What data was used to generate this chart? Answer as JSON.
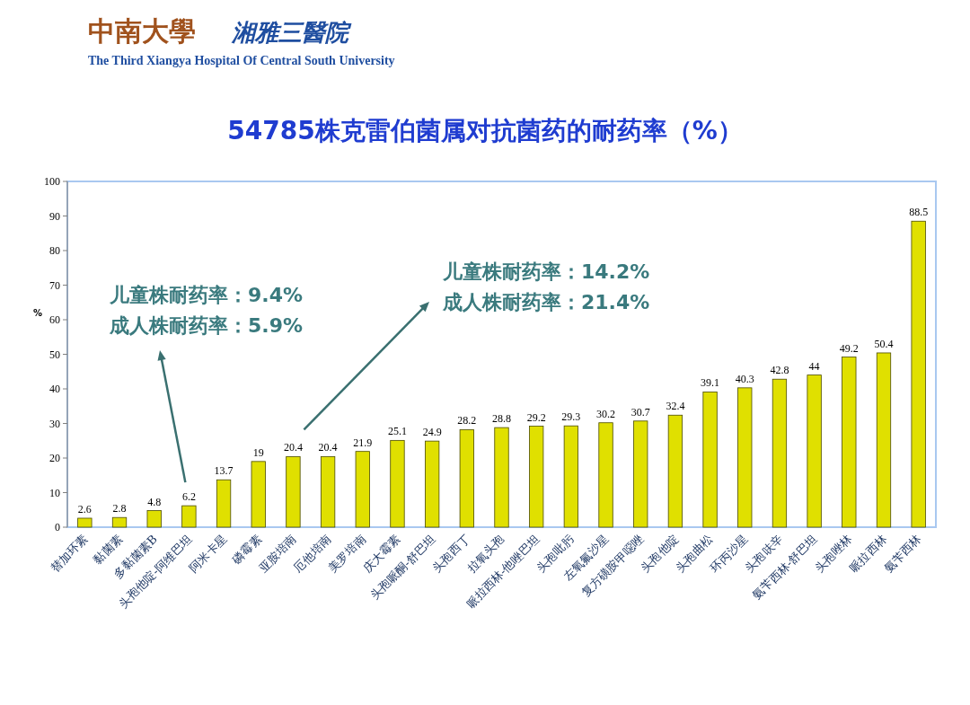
{
  "chart_data": {
    "type": "bar",
    "title": "54785株克雷伯菌属对抗菌药的耐药率（%）",
    "ylabel": "%",
    "categories": [
      "替加环素",
      "黏菌素",
      "多黏菌素B",
      "头孢他啶-阿维巴坦",
      "阿米卡星",
      "磷霉素",
      "亚胺培南",
      "厄他培南",
      "美罗培南",
      "庆大霉素",
      "头孢哌酮-舒巴坦",
      "头孢西丁",
      "拉氧头孢",
      "哌拉西林-他唑巴坦",
      "头孢吡肟",
      "左氧氟沙星",
      "复方磺胺甲噁唑",
      "头孢他啶",
      "头孢曲松",
      "环丙沙星",
      "头孢呋辛",
      "氨苄西林-舒巴坦",
      "头孢唑林",
      "哌拉西林",
      "氨苄西林"
    ],
    "values": [
      2.6,
      2.8,
      4.8,
      6.2,
      13.7,
      19,
      20.4,
      20.4,
      21.9,
      25.1,
      24.9,
      28.2,
      28.8,
      29.2,
      29.3,
      30.2,
      30.7,
      32.4,
      39.1,
      40.3,
      42.8,
      44,
      49.2,
      50.4,
      88.5
    ],
    "color": "#e0e000",
    "data_labels": true,
    "ylim": [
      0,
      100
    ],
    "yticks": [
      0,
      10,
      20,
      30,
      40,
      50,
      60,
      70,
      80,
      90,
      100
    ],
    "grid": false,
    "annotations": [
      "中南大學",
      "湘雅三醫院",
      "The Third Xiangya Hospital Of Central South University",
      "儿童株耐药率：9.4%\n成人株耐药率：5.9%",
      "儿童株耐药率：14.2%\n成人株耐药率：21.4%"
    ]
  }
}
